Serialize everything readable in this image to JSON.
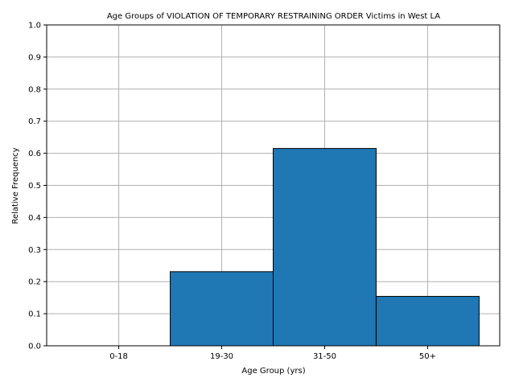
{
  "chart_data": {
    "type": "bar",
    "title": "Age Groups of VIOLATION OF TEMPORARY RESTRAINING ORDER Victims in West LA",
    "xlabel": "Age Group (yrs)",
    "ylabel": "Relative Frequency",
    "categories": [
      "0-18",
      "19-30",
      "31-50",
      "50+"
    ],
    "values": [
      0.0,
      0.231,
      0.615,
      0.154
    ],
    "ylim": [
      0,
      1.0
    ],
    "yticks": [
      "0.0",
      "0.1",
      "0.2",
      "0.3",
      "0.4",
      "0.5",
      "0.6",
      "0.7",
      "0.8",
      "0.9",
      "1.0"
    ],
    "grid": true,
    "bar_color": "#1f77b4",
    "edge_color": "#000000",
    "grid_color": "#b0b0b0"
  }
}
